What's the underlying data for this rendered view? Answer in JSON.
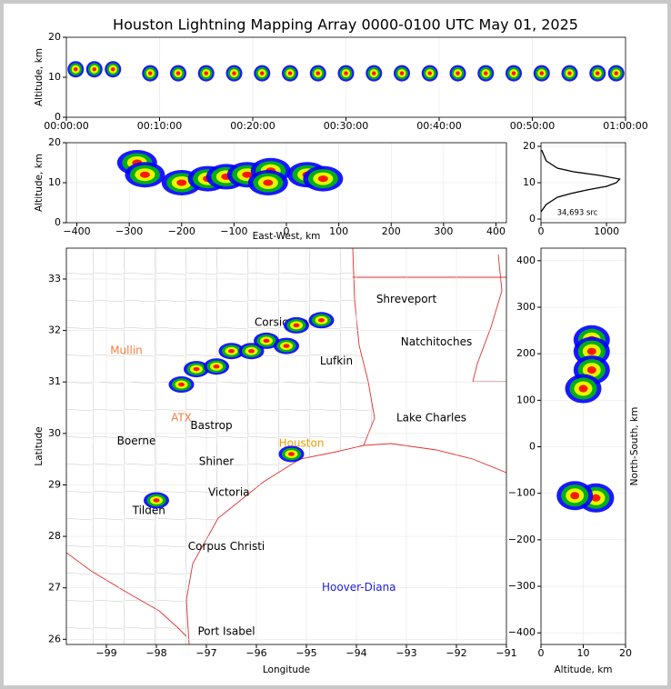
{
  "chart_data": [
    {
      "type": "scatter",
      "title": "Houston Lightning Mapping Array 0000-0100 UTC May 01, 2025",
      "y_label": "Altitude, km",
      "xlim": [
        0,
        60
      ],
      "ylim": [
        0,
        20
      ],
      "xticks": [
        {
          "value": 0,
          "label": "00:00:00"
        },
        {
          "value": 10,
          "label": "00:10:00"
        },
        {
          "value": 20,
          "label": "00:20:00"
        },
        {
          "value": 30,
          "label": "00:30:00"
        },
        {
          "value": 40,
          "label": "00:40:00"
        },
        {
          "value": 50,
          "label": "00:50:00"
        },
        {
          "value": 60,
          "label": "01:00:00"
        }
      ],
      "yticks": [
        0,
        10,
        20
      ],
      "colors": [
        "#0000ff",
        "#00c000",
        "#ffff00",
        "#ff0000"
      ],
      "series": [
        {
          "name": "sources",
          "x": [
            1,
            3,
            5,
            9,
            12,
            15,
            18,
            21,
            24,
            27,
            30,
            33,
            36,
            39,
            42,
            45,
            48,
            51,
            54,
            57,
            59
          ],
          "values": [
            12,
            12,
            12,
            11,
            11,
            11,
            11,
            11,
            11,
            11,
            11,
            11,
            11,
            11,
            11,
            11,
            11,
            11,
            11,
            11,
            11
          ]
        }
      ]
    },
    {
      "type": "scatter",
      "x_label": "East-West, km",
      "y_label": "Altitude, km",
      "xlim": [
        -420,
        420
      ],
      "ylim": [
        0,
        20
      ],
      "xticks": [
        {
          "value": -400,
          "label": "−400"
        },
        {
          "value": -300,
          "label": "−300"
        },
        {
          "value": -200,
          "label": "−200"
        },
        {
          "value": -100,
          "label": "−100"
        },
        0,
        100,
        200,
        300,
        400
      ],
      "yticks": [
        0,
        10,
        20
      ],
      "colors": [
        "#0000ff",
        "#00c000",
        "#ffff00",
        "#ff0000"
      ],
      "series": [
        {
          "name": "sources",
          "x": [
            -285,
            -270,
            -200,
            -150,
            -115,
            -75,
            -30,
            -35,
            40,
            70
          ],
          "values": [
            15,
            12,
            10,
            11,
            11.5,
            12,
            13,
            10,
            12,
            11
          ]
        }
      ]
    },
    {
      "type": "line",
      "annotation": "34,693 src",
      "xlim": [
        0,
        1290
      ],
      "ylim": [
        -1,
        21
      ],
      "xticks": [
        0,
        1000
      ],
      "yticks": [
        0,
        10,
        20
      ],
      "color": "#000000",
      "series": [
        {
          "name": "sources",
          "x": [
            0,
            80,
            250,
            450,
            700,
            1000,
            1150,
            1200,
            900,
            500,
            250,
            80,
            10
          ],
          "values": [
            2,
            4,
            6,
            7,
            8,
            9,
            10,
            11,
            12,
            13,
            14,
            16,
            19
          ]
        }
      ]
    },
    {
      "type": "scatter",
      "x_label": "Longitude",
      "y_label": "Latitude",
      "xlim": [
        -99.8,
        -91
      ],
      "ylim": [
        25.9,
        33.6
      ],
      "xticks": [
        {
          "value": -99,
          "label": "−99"
        },
        {
          "value": -98,
          "label": "−98"
        },
        {
          "value": -97,
          "label": "−97"
        },
        {
          "value": -96,
          "label": "−96"
        },
        {
          "value": -95,
          "label": "−95"
        },
        {
          "value": -94,
          "label": "−94"
        },
        {
          "value": -93,
          "label": "−93"
        },
        {
          "value": -92,
          "label": "−92"
        },
        {
          "value": -91,
          "label": "−91"
        }
      ],
      "yticks": [
        26,
        27,
        28,
        29,
        30,
        31,
        32,
        33
      ],
      "colors": [
        "#0000ff",
        "#00c000",
        "#ffff00",
        "#ff0000"
      ],
      "places": [
        {
          "name": "Shreveport",
          "lon": -93.0,
          "lat": 32.6,
          "color": "#000000"
        },
        {
          "name": "Natchitoches",
          "lon": -92.4,
          "lat": 31.77,
          "color": "#000000"
        },
        {
          "name": "Lufkin",
          "lon": -94.4,
          "lat": 31.4,
          "color": "#000000"
        },
        {
          "name": "Corsicana",
          "lon": -95.5,
          "lat": 32.15,
          "color": "#000000"
        },
        {
          "name": "Mullin",
          "lon": -98.6,
          "lat": 31.6,
          "color": "#f08040"
        },
        {
          "name": "ATX",
          "lon": -97.5,
          "lat": 30.3,
          "color": "#f08040"
        },
        {
          "name": "Bastrop",
          "lon": -96.9,
          "lat": 30.15,
          "color": "#000000"
        },
        {
          "name": "Boerne",
          "lon": -98.4,
          "lat": 29.85,
          "color": "#000000"
        },
        {
          "name": "Shiner",
          "lon": -96.8,
          "lat": 29.45,
          "color": "#000000"
        },
        {
          "name": "Victoria",
          "lon": -96.55,
          "lat": 28.85,
          "color": "#000000"
        },
        {
          "name": "Tilden",
          "lon": -98.15,
          "lat": 28.5,
          "color": "#000000"
        },
        {
          "name": "Corpus Christi",
          "lon": -96.6,
          "lat": 27.8,
          "color": "#000000"
        },
        {
          "name": "Port Isabel",
          "lon": -96.6,
          "lat": 26.15,
          "color": "#000000"
        },
        {
          "name": "Lake Charles",
          "lon": -92.5,
          "lat": 30.3,
          "color": "#000000"
        },
        {
          "name": "Houston",
          "lon": -95.1,
          "lat": 29.8,
          "color": "#f0a000"
        },
        {
          "name": "Hoover-Diana",
          "lon": -93.95,
          "lat": 27.0,
          "color": "#2020e0"
        }
      ],
      "series": [
        {
          "name": "sources",
          "x": [
            -98.0,
            -97.5,
            -97.2,
            -96.8,
            -96.5,
            -96.1,
            -95.8,
            -95.4,
            -95.2,
            -94.7,
            -95.3
          ],
          "values": [
            28.7,
            30.95,
            31.25,
            31.3,
            31.6,
            31.6,
            31.8,
            31.7,
            32.1,
            32.2,
            29.6
          ]
        }
      ]
    },
    {
      "type": "scatter",
      "x_label": "Altitude, km",
      "y_label": "North-South, km",
      "xlim": [
        0,
        20
      ],
      "ylim": [
        -425,
        427
      ],
      "xticks": [
        0,
        10,
        20
      ],
      "yticks": [
        {
          "value": -400,
          "label": "−400"
        },
        {
          "value": -300,
          "label": "−300"
        },
        {
          "value": -200,
          "label": "−200"
        },
        {
          "value": -100,
          "label": "−100"
        },
        0,
        100,
        200,
        300,
        400
      ],
      "colors": [
        "#0000ff",
        "#00c000",
        "#ffff00",
        "#ff0000"
      ],
      "series": [
        {
          "name": "sources",
          "x": [
            12,
            12,
            12,
            10,
            13,
            8
          ],
          "values": [
            230,
            205,
            165,
            125,
            -110,
            -105
          ]
        }
      ]
    }
  ]
}
